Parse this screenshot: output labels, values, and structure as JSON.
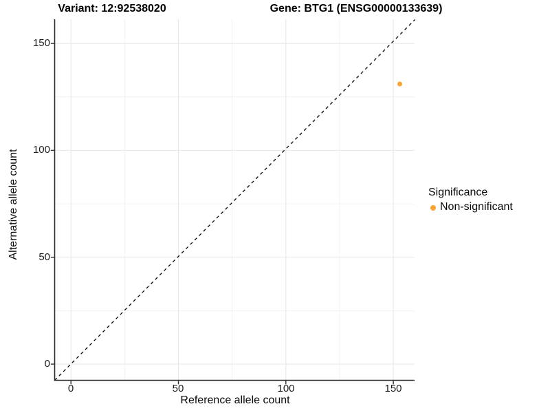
{
  "chart_data": {
    "type": "scatter",
    "titles": {
      "variant": "Variant: 12:92538020",
      "gene": "Gene: BTG1 (ENSG00000133639)"
    },
    "xlabel": "Reference allele count",
    "ylabel": "Alternative allele count",
    "x_ticks": [
      "0",
      "50",
      "100",
      "150"
    ],
    "y_ticks": [
      "0",
      "50",
      "100",
      "150"
    ],
    "xlim": [
      -7.7,
      160.9
    ],
    "ylim": [
      -7.7,
      160.9
    ],
    "grid": true,
    "legend_position": "right",
    "reference_line": {
      "type": "identity y=x",
      "style": "dashed",
      "color": "#000000"
    },
    "points": [
      {
        "x": 153,
        "y": 131,
        "series": "Non-significant"
      }
    ],
    "point_color": "#FCA432",
    "legend": {
      "title": "Significance",
      "entries": [
        {
          "label": "Non-significant",
          "color": "#FCA432"
        }
      ]
    }
  }
}
